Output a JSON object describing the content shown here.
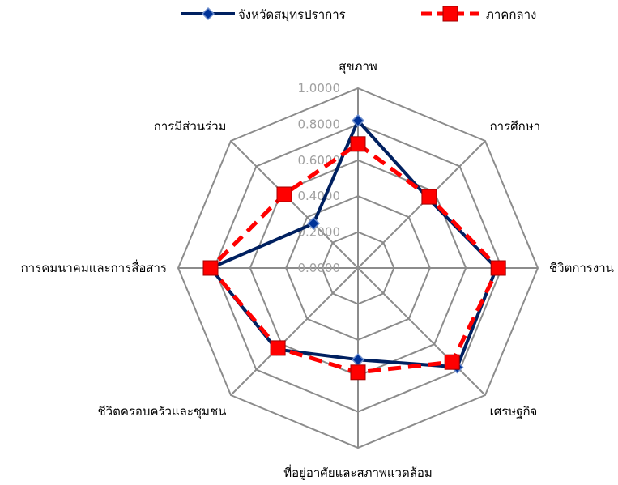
{
  "chart_data": {
    "type": "radar",
    "axes": [
      "สุขภาพ",
      "การศึกษา",
      "ชีวิตการงาน",
      "เศรษฐกิจ",
      "ที่อยู่อาศัยและสภาพแวดล้อม",
      "ชีวิตครอบครัวและชุมชน",
      "การคมนาคมและการสื่อสาร",
      "การมีส่วนร่วม"
    ],
    "rlim": [
      0,
      1
    ],
    "ticks": [
      "0.0000",
      "0.2000",
      "0.4000",
      "0.6000",
      "0.8000",
      "1.0000"
    ],
    "tick_values": [
      0,
      0.2,
      0.4,
      0.6,
      0.8,
      1.0
    ],
    "grid": true,
    "legend_position": "top",
    "series": [
      {
        "name": "จังหวัดสมุทรปราการ",
        "values": [
          0.82,
          0.55,
          0.77,
          0.78,
          0.51,
          0.64,
          0.82,
          0.35
        ],
        "color": "#002060",
        "marker": "diamond",
        "dashed": false
      },
      {
        "name": "ภาคกลาง",
        "values": [
          0.69,
          0.56,
          0.78,
          0.74,
          0.58,
          0.63,
          0.82,
          0.58
        ],
        "color": "#ff0000",
        "marker": "square",
        "dashed": true
      }
    ]
  }
}
